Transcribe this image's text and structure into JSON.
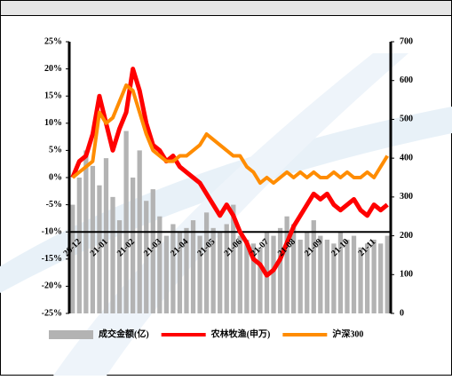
{
  "chart_data": {
    "type": "bar-line",
    "categories": [
      "20-12",
      null,
      null,
      null,
      "21-01",
      null,
      null,
      null,
      "21-02",
      null,
      null,
      null,
      "21-03",
      null,
      null,
      null,
      "21-04",
      null,
      null,
      null,
      "21-05",
      null,
      null,
      null,
      "21-06",
      null,
      null,
      null,
      "21-07",
      null,
      null,
      null,
      "21-08",
      null,
      null,
      null,
      "21-09",
      null,
      null,
      null,
      "21-10",
      null,
      null,
      null,
      "21-11",
      null,
      null,
      null
    ],
    "series": [
      {
        "name": "成交金额(亿)",
        "color": "#b3b3b3",
        "axis": "y2",
        "kind": "bar",
        "values": [
          280,
          350,
          420,
          380,
          330,
          400,
          300,
          240,
          470,
          350,
          420,
          290,
          320,
          250,
          200,
          230,
          210,
          220,
          240,
          200,
          260,
          220,
          210,
          230,
          280,
          200,
          190,
          180,
          170,
          210,
          200,
          220,
          250,
          230,
          190,
          210,
          240,
          200,
          190,
          180,
          210,
          190,
          200,
          170,
          180,
          190,
          180,
          200
        ]
      },
      {
        "name": "农林牧渔(申万)",
        "color": "#ff0000",
        "kind": "line",
        "values": [
          0,
          3,
          4,
          8,
          15,
          10,
          5,
          9,
          12,
          20,
          16,
          10,
          6,
          5,
          3,
          4,
          2,
          1,
          0,
          -1,
          -3,
          -5,
          -7,
          -5,
          -7,
          -10,
          -12,
          -15,
          -16,
          -18,
          -17,
          -15,
          -12,
          -9,
          -7,
          -5,
          -3,
          -4,
          -3,
          -5,
          -6,
          -5,
          -4,
          -6,
          -7,
          -5,
          -6,
          -5
        ]
      },
      {
        "name": "沪深300",
        "color": "#ff8c00",
        "kind": "line",
        "values": [
          0,
          1,
          2,
          3,
          12,
          10,
          11,
          14,
          17,
          16,
          12,
          8,
          5,
          4,
          3,
          3,
          4,
          4,
          5,
          6,
          8,
          7,
          6,
          5,
          4,
          4,
          2,
          1,
          -1,
          0,
          -1,
          0,
          1,
          0,
          1,
          0,
          1,
          0,
          0,
          1,
          0,
          1,
          0,
          0,
          1,
          0,
          2,
          4
        ]
      }
    ],
    "ylim": [
      -25,
      25
    ],
    "yticks": [
      {
        "value": -25,
        "label": "-25%"
      },
      {
        "value": -20,
        "label": "-20%"
      },
      {
        "value": -15,
        "label": "-15%"
      },
      {
        "value": -10,
        "label": "-10%"
      },
      {
        "value": -5,
        "label": "-5%"
      },
      {
        "value": 0,
        "label": "0%"
      },
      {
        "value": 5,
        "label": "5%"
      },
      {
        "value": 10,
        "label": "10%"
      },
      {
        "value": 15,
        "label": "15%"
      },
      {
        "value": 20,
        "label": "20%"
      },
      {
        "value": 25,
        "label": "25%"
      }
    ],
    "y2lim": [
      0,
      700
    ],
    "y2ticks": [
      0,
      100,
      200,
      300,
      400,
      500,
      600,
      700
    ],
    "xaxis_at": -10
  }
}
